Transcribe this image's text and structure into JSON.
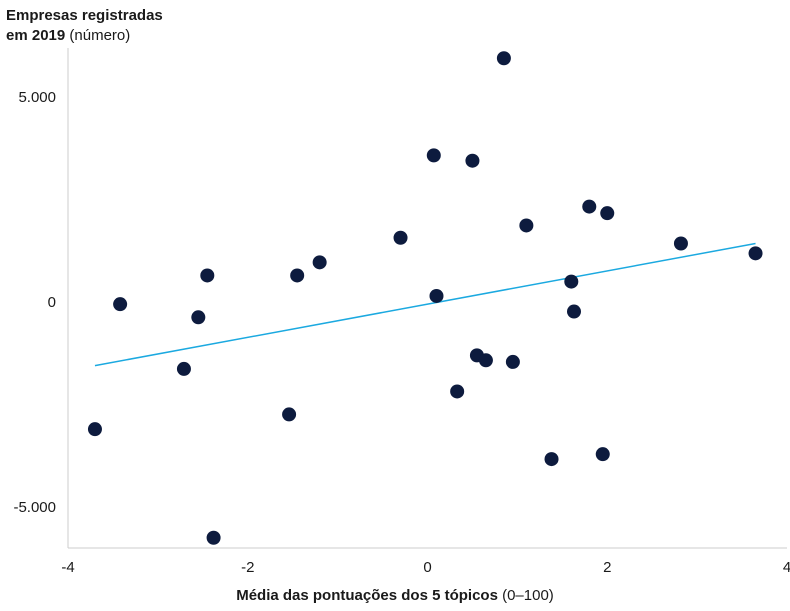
{
  "chart_data": {
    "type": "scatter",
    "title_bold_line1": "Empresas registradas",
    "title_bold_line2": "em 2019",
    "title_unit": "(número)",
    "xlabel_bold": "Média das pontuações dos 5 tópicos",
    "xlabel_unit": "(0–100)",
    "xlim": [
      -4,
      4
    ],
    "ylim": [
      -6000,
      6200
    ],
    "x_ticks": [
      -4,
      -2,
      0,
      2,
      4
    ],
    "x_tick_labels": [
      "-4",
      "-2",
      "0",
      "2",
      "4"
    ],
    "y_ticks": [
      5000,
      0,
      -5000
    ],
    "y_tick_labels": [
      "5.000",
      "0",
      "-5.000"
    ],
    "grid": false,
    "colors": {
      "points": "#0d1b3e",
      "trendline": "#1ba9e0",
      "axis": "#cccccc"
    },
    "points": [
      {
        "x": -3.7,
        "y": -3100
      },
      {
        "x": -3.42,
        "y": -50
      },
      {
        "x": -2.71,
        "y": -1630
      },
      {
        "x": -2.55,
        "y": -370
      },
      {
        "x": -2.45,
        "y": 650
      },
      {
        "x": -2.38,
        "y": -5750
      },
      {
        "x": -1.54,
        "y": -2740
      },
      {
        "x": -1.45,
        "y": 650
      },
      {
        "x": -1.2,
        "y": 970
      },
      {
        "x": -0.3,
        "y": 1570
      },
      {
        "x": 0.07,
        "y": 3580
      },
      {
        "x": 0.1,
        "y": 150
      },
      {
        "x": 0.33,
        "y": -2180
      },
      {
        "x": 0.5,
        "y": 3450
      },
      {
        "x": 0.55,
        "y": -1300
      },
      {
        "x": 0.65,
        "y": -1420
      },
      {
        "x": 0.85,
        "y": 5950
      },
      {
        "x": 0.95,
        "y": -1460
      },
      {
        "x": 1.1,
        "y": 1870
      },
      {
        "x": 1.38,
        "y": -3830
      },
      {
        "x": 1.6,
        "y": 500
      },
      {
        "x": 1.63,
        "y": -230
      },
      {
        "x": 1.8,
        "y": 2330
      },
      {
        "x": 1.95,
        "y": -3710
      },
      {
        "x": 2.0,
        "y": 2170
      },
      {
        "x": 2.82,
        "y": 1430
      },
      {
        "x": 3.65,
        "y": 1190
      }
    ],
    "trendline": {
      "x": [
        -3.7,
        3.65
      ],
      "y": [
        -1550,
        1430
      ]
    }
  }
}
